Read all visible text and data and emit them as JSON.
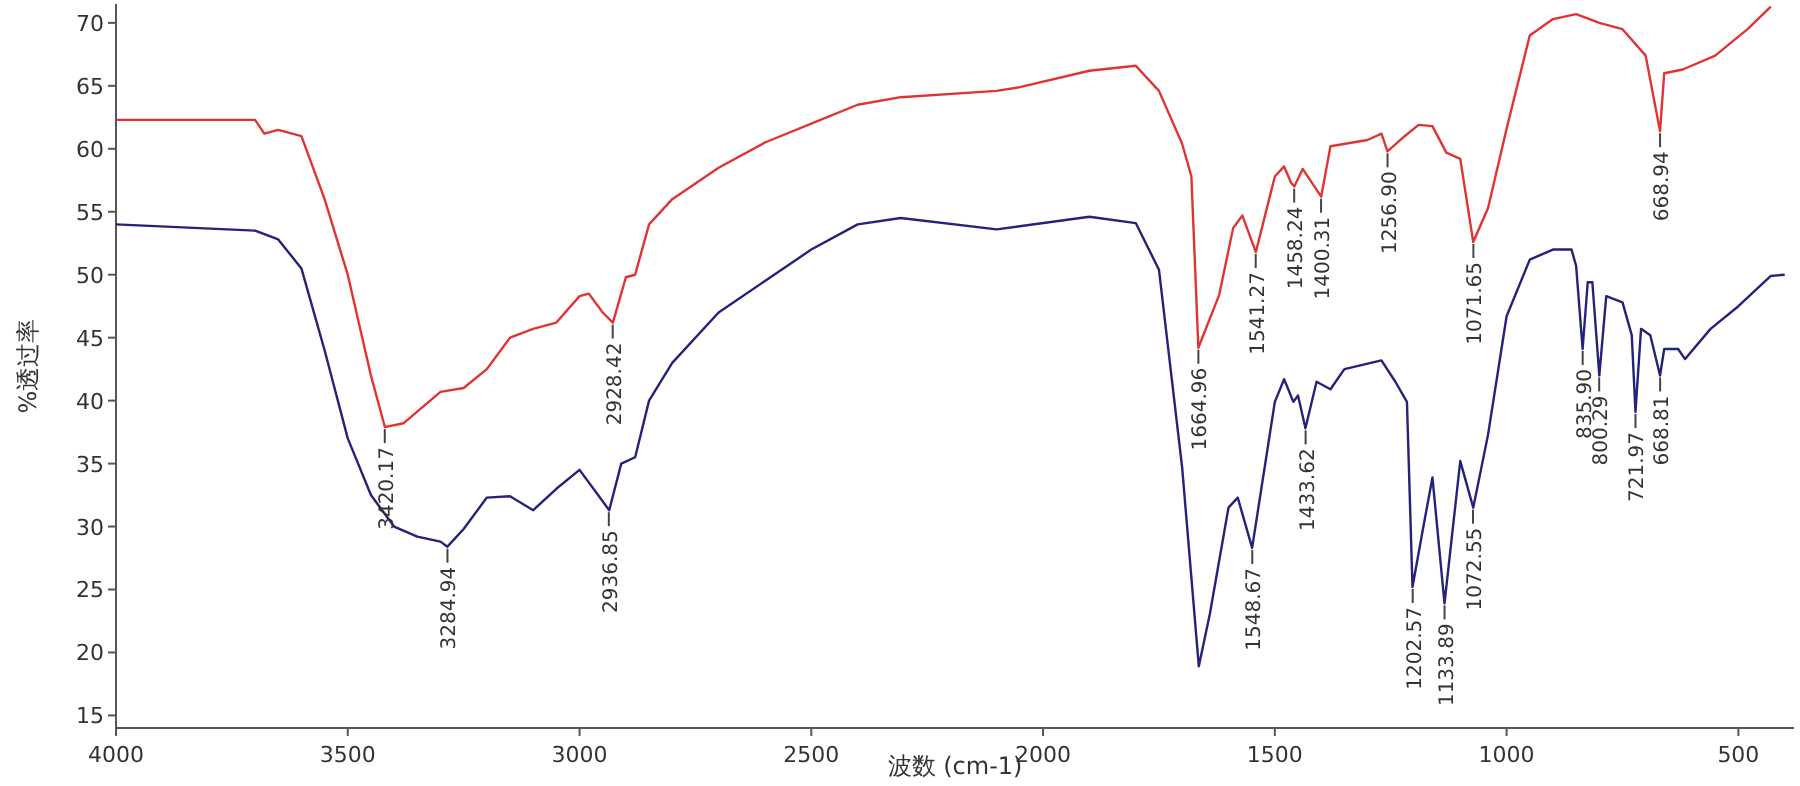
{
  "chart_data": {
    "type": "line",
    "xlabel": "波数 (cm-1)",
    "ylabel": "%透过率",
    "xlim": [
      4000,
      380
    ],
    "xticks": [
      4000,
      3500,
      3000,
      2500,
      2000,
      1500,
      1000,
      500
    ],
    "ylim": [
      14,
      71.5
    ],
    "yticks": [
      15,
      20,
      25,
      30,
      35,
      40,
      45,
      50,
      55,
      60,
      65,
      70
    ],
    "grid": false,
    "marker": "none",
    "line_style": "solid",
    "series": [
      {
        "color": "#e03434",
        "x": [
          4000,
          3700,
          3680,
          3650,
          3600,
          3550,
          3500,
          3450,
          3420,
          3380,
          3300,
          3250,
          3200,
          3150,
          3100,
          3050,
          3000,
          2980,
          2950,
          2928,
          2900,
          2880,
          2850,
          2800,
          2700,
          2600,
          2500,
          2400,
          2307,
          2100,
          2050,
          1900,
          1800,
          1750,
          1700,
          1680,
          1665,
          1620,
          1590,
          1570,
          1541,
          1500,
          1480,
          1465,
          1458,
          1440,
          1400,
          1380,
          1300,
          1270,
          1257,
          1220,
          1190,
          1160,
          1130,
          1100,
          1072,
          1040,
          1000,
          950,
          900,
          850,
          800,
          750,
          700,
          669,
          660,
          620,
          550,
          480,
          430
        ],
        "values": [
          62.3,
          62.3,
          61.2,
          61.5,
          61,
          56,
          50,
          42,
          37.9,
          38.2,
          40.7,
          41,
          42.5,
          45,
          45.7,
          46.2,
          48.3,
          48.5,
          47,
          46.2,
          49.8,
          50,
          54,
          56,
          58.5,
          60.5,
          62,
          63.5,
          64.1,
          64.6,
          64.9,
          66.2,
          66.6,
          64.6,
          60.4,
          57.8,
          44.2,
          48.4,
          53.7,
          54.7,
          51.8,
          57.8,
          58.6,
          57.3,
          57,
          58.4,
          56.2,
          60.2,
          60.7,
          61.2,
          59.8,
          61,
          61.9,
          61.8,
          59.7,
          59.2,
          52.6,
          55.3,
          61.6,
          69,
          70.3,
          70.7,
          70,
          69.5,
          67.4,
          61.4,
          66,
          66.3,
          67.4,
          69.5,
          71.3
        ]
      },
      {
        "color": "#23237a",
        "x": [
          4000,
          3700,
          3650,
          3600,
          3550,
          3500,
          3450,
          3400,
          3350,
          3300,
          3285,
          3250,
          3200,
          3150,
          3100,
          3050,
          3000,
          2960,
          2936,
          2910,
          2880,
          2850,
          2800,
          2700,
          2600,
          2500,
          2400,
          2307,
          2100,
          1900,
          1800,
          1750,
          1700,
          1664,
          1640,
          1600,
          1580,
          1549,
          1500,
          1480,
          1460,
          1450,
          1434,
          1410,
          1380,
          1350,
          1270,
          1240,
          1215,
          1203,
          1180,
          1160,
          1134,
          1100,
          1072,
          1040,
          1000,
          950,
          900,
          860,
          850,
          836,
          825,
          815,
          800,
          785,
          750,
          730,
          722,
          710,
          690,
          669,
          660,
          630,
          615,
          560,
          500,
          430,
          400
        ],
        "values": [
          54,
          53.5,
          52.8,
          50.5,
          44,
          37,
          32.5,
          30,
          29.2,
          28.8,
          28.4,
          29.8,
          32.3,
          32.4,
          31.3,
          33,
          34.5,
          32.5,
          31.3,
          35,
          35.5,
          40,
          43,
          47,
          49.5,
          52,
          54,
          54.5,
          53.6,
          54.6,
          54.1,
          50.4,
          34.7,
          18.9,
          23.1,
          31.5,
          32.3,
          28.3,
          39.9,
          41.7,
          39.9,
          40.4,
          37.8,
          41.5,
          40.9,
          42.5,
          43.2,
          41.5,
          39.9,
          25.2,
          29.9,
          33.9,
          23.9,
          35.2,
          31.5,
          37.3,
          46.7,
          51.2,
          52,
          52,
          50.7,
          44.1,
          49.4,
          49.4,
          42,
          48.3,
          47.8,
          45.2,
          39.1,
          45.7,
          45.2,
          42,
          44.1,
          44.1,
          43.3,
          45.7,
          47.5,
          49.9,
          50
        ]
      }
    ],
    "annotations": [
      {
        "text": "3420.17",
        "x": 3420.17,
        "y": 37.9
      },
      {
        "text": "2928.42",
        "x": 2928.42,
        "y": 46.2
      },
      {
        "text": "1664.96",
        "x": 1664.96,
        "y": 44.2
      },
      {
        "text": "1541.27",
        "x": 1541.27,
        "y": 51.8
      },
      {
        "text": "1458.24",
        "x": 1458.24,
        "y": 57
      },
      {
        "text": "1400.31",
        "x": 1400.31,
        "y": 56.2
      },
      {
        "text": "1256.90",
        "x": 1256.9,
        "y": 59.8
      },
      {
        "text": "1071.65",
        "x": 1071.65,
        "y": 52.6
      },
      {
        "text": "668.94",
        "x": 668.94,
        "y": 61.4
      },
      {
        "text": "3284.94",
        "x": 3284.94,
        "y": 28.4
      },
      {
        "text": "2936.85",
        "x": 2936.85,
        "y": 31.3
      },
      {
        "text": "1548.67",
        "x": 1548.67,
        "y": 28.3
      },
      {
        "text": "1433.62",
        "x": 1433.62,
        "y": 37.8
      },
      {
        "text": "1202.57",
        "x": 1202.57,
        "y": 25.2
      },
      {
        "text": "1133.89",
        "x": 1133.89,
        "y": 23.9
      },
      {
        "text": "1072.55",
        "x": 1072.55,
        "y": 31.5
      },
      {
        "text": "835.90",
        "x": 835.9,
        "y": 44.1
      },
      {
        "text": "800.29",
        "x": 800.29,
        "y": 42
      },
      {
        "text": "721.97",
        "x": 721.97,
        "y": 39.1
      },
      {
        "text": "668.81",
        "x": 668.81,
        "y": 42
      }
    ]
  }
}
